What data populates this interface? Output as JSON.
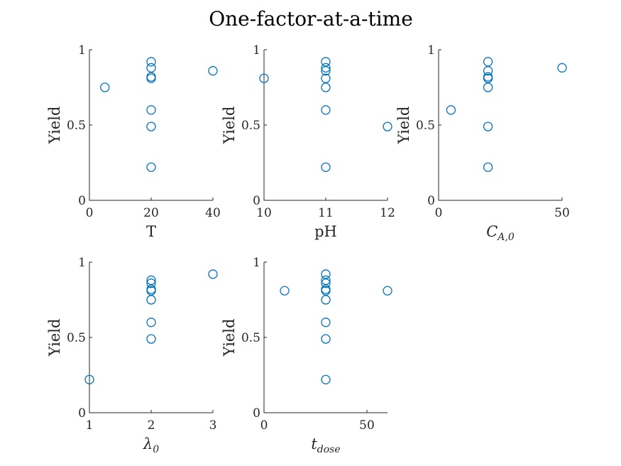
{
  "figure": {
    "title": "One-factor-at-a-time",
    "marker_color": "#0072BD"
  },
  "chart_data": [
    {
      "type": "scatter",
      "xlabel": "T",
      "ylabel": "Yield",
      "xlim": [
        0,
        40
      ],
      "ylim": [
        0,
        1
      ],
      "xticks": [
        0,
        20,
        40
      ],
      "yticks": [
        0,
        0.5,
        1
      ],
      "points": [
        [
          5,
          0.75
        ],
        [
          20,
          0.92
        ],
        [
          20,
          0.88
        ],
        [
          20,
          0.82
        ],
        [
          20,
          0.81
        ],
        [
          20,
          0.6
        ],
        [
          20,
          0.49
        ],
        [
          20,
          0.22
        ],
        [
          40,
          0.86
        ]
      ]
    },
    {
      "type": "scatter",
      "xlabel": "pH",
      "ylabel": "Yield",
      "xlim": [
        10,
        12
      ],
      "ylim": [
        0,
        1
      ],
      "xticks": [
        10,
        11,
        12
      ],
      "yticks": [
        0,
        0.5,
        1
      ],
      "points": [
        [
          10,
          0.81
        ],
        [
          11,
          0.92
        ],
        [
          11,
          0.88
        ],
        [
          11,
          0.86
        ],
        [
          11,
          0.81
        ],
        [
          11,
          0.75
        ],
        [
          11,
          0.6
        ],
        [
          11,
          0.22
        ],
        [
          12,
          0.49
        ]
      ]
    },
    {
      "type": "scatter",
      "xlabel": "C_{A,0}",
      "xlabel_main": "C",
      "xlabel_sub": "A,0",
      "ylabel": "Yield",
      "xlim": [
        0,
        50
      ],
      "ylim": [
        0,
        1
      ],
      "xticks": [
        0,
        50
      ],
      "yticks": [
        0,
        0.5,
        1
      ],
      "points": [
        [
          5,
          0.6
        ],
        [
          20,
          0.92
        ],
        [
          20,
          0.86
        ],
        [
          20,
          0.82
        ],
        [
          20,
          0.81
        ],
        [
          20,
          0.75
        ],
        [
          20,
          0.49
        ],
        [
          20,
          0.22
        ],
        [
          50,
          0.88
        ]
      ]
    },
    {
      "type": "scatter",
      "xlabel": "λ_0",
      "xlabel_main": "λ",
      "xlabel_sub": "0",
      "ylabel": "Yield",
      "xlim": [
        1,
        3
      ],
      "ylim": [
        0,
        1
      ],
      "xticks": [
        1,
        2,
        3
      ],
      "yticks": [
        0,
        0.5,
        1
      ],
      "points": [
        [
          1,
          0.22
        ],
        [
          2,
          0.88
        ],
        [
          2,
          0.86
        ],
        [
          2,
          0.82
        ],
        [
          2,
          0.81
        ],
        [
          2,
          0.75
        ],
        [
          2,
          0.6
        ],
        [
          2,
          0.49
        ],
        [
          3,
          0.92
        ]
      ]
    },
    {
      "type": "scatter",
      "xlabel": "t_{dose}",
      "xlabel_main": "t",
      "xlabel_sub": "dose",
      "ylabel": "Yield",
      "xlim": [
        0,
        60
      ],
      "ylim": [
        0,
        1
      ],
      "xticks": [
        0,
        50
      ],
      "yticks": [
        0,
        0.5,
        1
      ],
      "points": [
        [
          10,
          0.81
        ],
        [
          30,
          0.92
        ],
        [
          30,
          0.88
        ],
        [
          30,
          0.86
        ],
        [
          30,
          0.82
        ],
        [
          30,
          0.81
        ],
        [
          30,
          0.75
        ],
        [
          30,
          0.6
        ],
        [
          30,
          0.49
        ],
        [
          30,
          0.22
        ],
        [
          60,
          0.81
        ]
      ]
    }
  ]
}
